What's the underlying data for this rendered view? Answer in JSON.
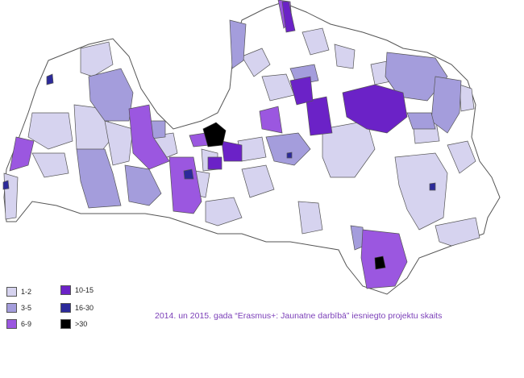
{
  "legend": {
    "items": [
      {
        "label": "1-2",
        "color": "#d6d3ef"
      },
      {
        "label": "3-5",
        "color": "#a49ddc"
      },
      {
        "label": "6-9",
        "color": "#9b57e0"
      },
      {
        "label": "10-15",
        "color": "#6b22c7"
      },
      {
        "label": "16-30",
        "color": "#2c2a9a"
      },
      {
        "label": ">30",
        "color": "#000000"
      }
    ]
  },
  "caption": "2014. un 2015. gada “Erasmus+: Jaunatne darbībā” iesniegto projektu skaits",
  "colors": {
    "none": "#ffffff",
    "border": "#555555"
  }
}
